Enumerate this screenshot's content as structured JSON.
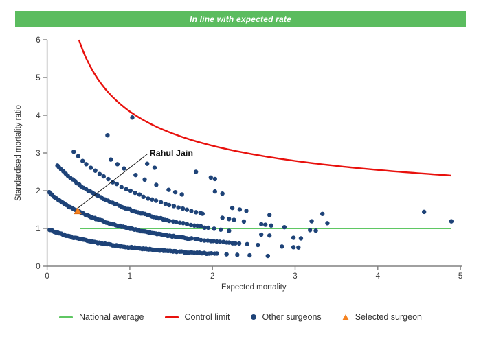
{
  "banner": {
    "text": "In line with expected rate",
    "background": "#5BBC5F",
    "text_color": "#FFFFFF"
  },
  "chart_data": {
    "type": "scatter",
    "title": "",
    "xlabel": "Expected mortality",
    "ylabel": "Standardised mortality ratio",
    "xlim": [
      0,
      5
    ],
    "ylim": [
      0,
      6
    ],
    "x_ticks": [
      0,
      1,
      2,
      3,
      4,
      5
    ],
    "y_ticks": [
      0,
      1,
      2,
      3,
      4,
      5,
      6
    ],
    "grid": false,
    "legend_position": "bottom",
    "axis_color": "#808080",
    "tick_label_color": "#3a3a3a",
    "national_average": {
      "label": "National average",
      "smr_value": 1,
      "x_start": 0.4,
      "x_end": 4.89,
      "color": "#5FC763"
    },
    "control_limit": {
      "label": "Control limit",
      "formula": "SMR = 1 + coef / sqrt(expected)",
      "coef": 3.1,
      "x_start": 0.385,
      "x_end": 4.89,
      "color": "#E8110D"
    },
    "other_surgeons": {
      "label": "Other surgeons",
      "color": "#1E4378",
      "marker": "circle",
      "marker_radius": 3.2,
      "smr_model": "SMR = deaths / (1 + expected_mortality)",
      "bands": [
        {
          "deaths": 1,
          "dense_segments": [
            {
              "from": 0.03,
              "to": 1.55,
              "count": 95
            },
            {
              "from": 1.57,
              "to": 2.05,
              "count": 17
            }
          ],
          "sparse_E": [
            2.17,
            2.3,
            2.45,
            2.67
          ]
        },
        {
          "deaths": 2,
          "dense_segments": [
            {
              "from": 0.03,
              "to": 1.72,
              "count": 100
            },
            {
              "from": 1.75,
              "to": 2.32,
              "count": 16
            }
          ],
          "sparse_E": [
            2.42,
            2.55,
            2.84,
            2.98,
            3.04
          ]
        },
        {
          "deaths": 3,
          "dense_segments": [
            {
              "from": 0.12,
              "to": 1.48,
              "count": 52
            },
            {
              "from": 1.52,
              "to": 1.95,
              "count": 11
            }
          ],
          "sparse_E": [
            2.02,
            2.1,
            2.2,
            2.59,
            2.69,
            2.98,
            3.07
          ]
        },
        {
          "deaths": 4,
          "dense_segments": [
            {
              "from": 0.32,
              "to": 1.85,
              "count": 30
            }
          ],
          "sparse_E": [
            1.88,
            2.12,
            2.2,
            2.26,
            2.38,
            2.59,
            2.64,
            2.71,
            2.87,
            3.18,
            3.25
          ]
        },
        {
          "deaths": 5,
          "dense_segments": [],
          "sparse_E": [
            0.77,
            0.85,
            0.93,
            1.07,
            1.18,
            1.32,
            1.47,
            1.55,
            1.63,
            2.24,
            2.33,
            2.41,
            2.69,
            3.2,
            3.39
          ]
        },
        {
          "deaths": 6,
          "dense_segments": [],
          "sparse_E": [
            0.73,
            1.21,
            1.3,
            2.03,
            2.12,
            3.33
          ]
        },
        {
          "deaths": 7,
          "dense_segments": [],
          "sparse_E": [
            1.8,
            1.98,
            2.03,
            4.89
          ]
        },
        {
          "deaths": 8,
          "dense_segments": [],
          "sparse_E": [
            1.03,
            4.56
          ]
        }
      ]
    },
    "selected_surgeon": {
      "label": "Selected surgeon",
      "name": "Rahul Jain",
      "expected": 0.37,
      "smr": 1.46,
      "color": "#F58220",
      "marker": "triangle"
    },
    "annotation": {
      "text": "Rahul Jain",
      "label_x": 1.24,
      "label_y": 2.92,
      "line_color": "#1a1a1a"
    }
  },
  "legend": {
    "items": [
      {
        "label": "National average",
        "swatch": "line",
        "color": "#5FC763"
      },
      {
        "label": "Control limit",
        "swatch": "line",
        "color": "#E8110D"
      },
      {
        "label": "Other surgeons",
        "swatch": "dot",
        "color": "#1E4378"
      },
      {
        "label": "Selected surgeon",
        "swatch": "triangle",
        "color": "#F58220"
      }
    ]
  }
}
